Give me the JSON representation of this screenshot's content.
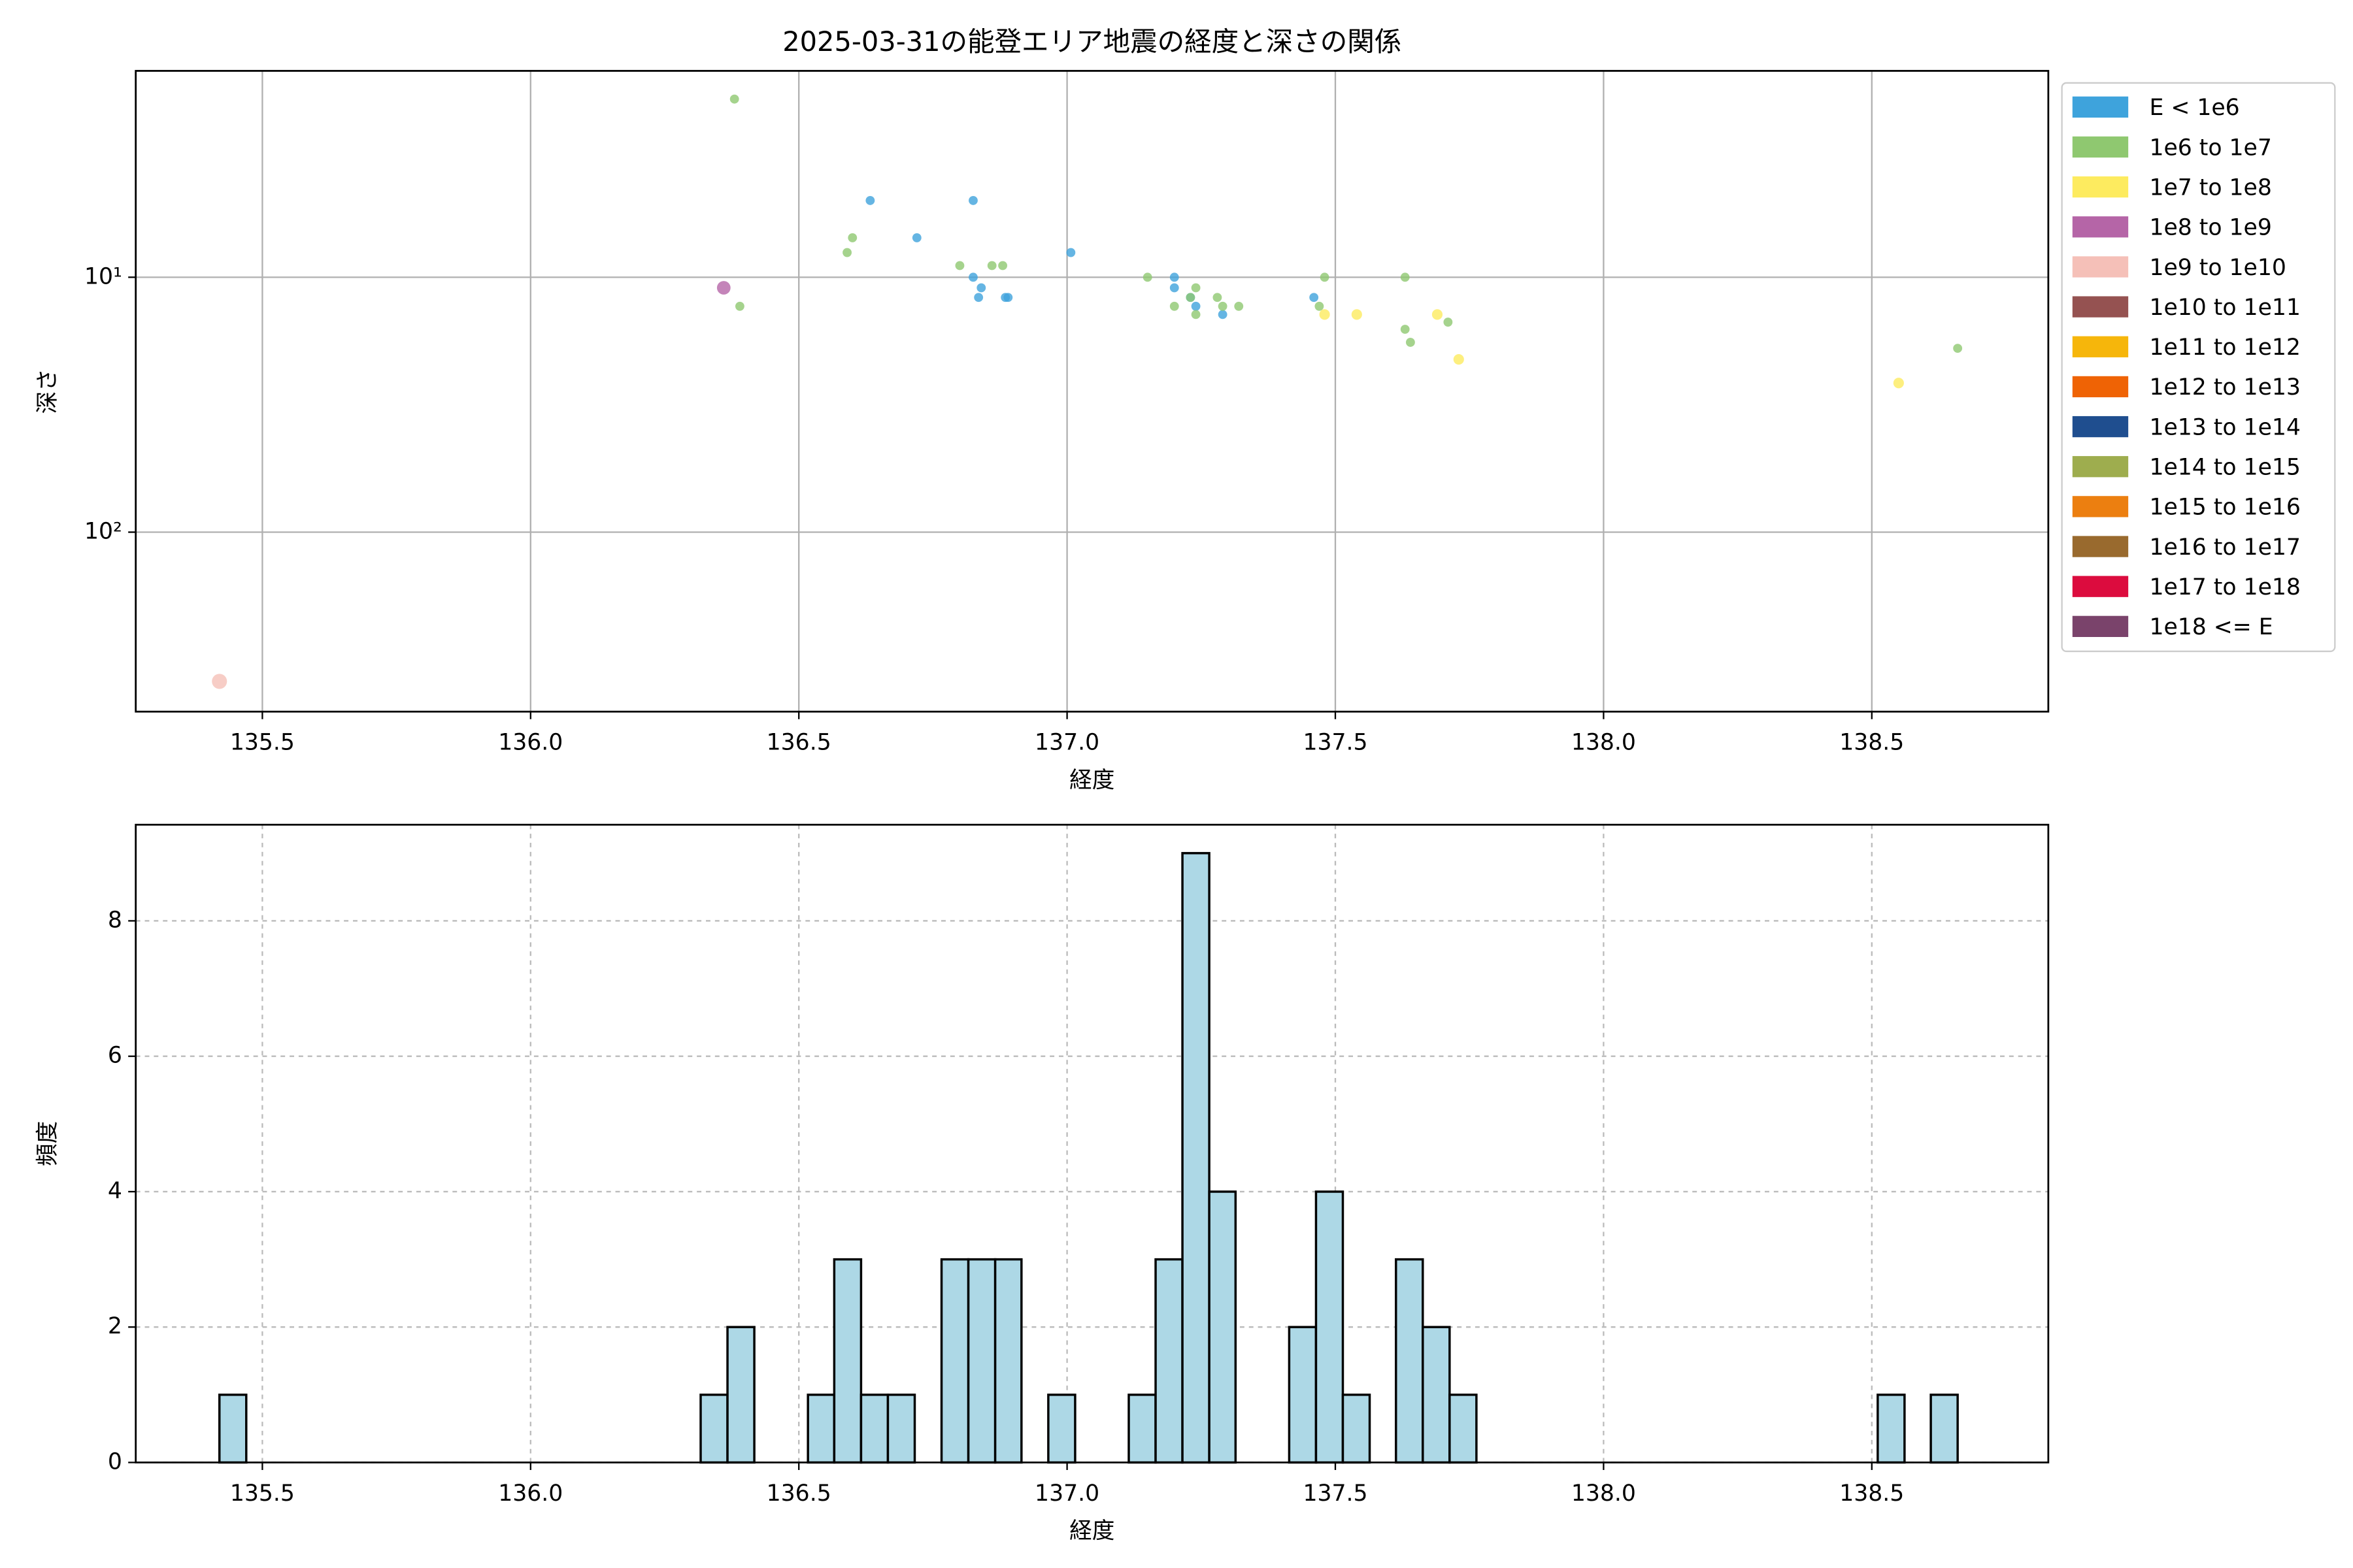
{
  "chart_data": [
    {
      "type": "scatter",
      "title": "2025-03-31の能登エリア地震の経度と深さの関係",
      "x_label": "経度",
      "y_label": "深さ",
      "xlim": [
        135.264,
        138.829
      ],
      "ylim": [
        506,
        1.55
      ],
      "yscale": "log",
      "grid_style": "solid",
      "legend": "outside right",
      "xticks": [
        135.5,
        {
          "value": 136,
          "label": "136.0"
        },
        136.5,
        {
          "value": 137,
          "label": "137.0"
        },
        137.5,
        {
          "value": 138,
          "label": "138.0"
        },
        138.5
      ],
      "yticks": [
        {
          "value": 10,
          "label": "10¹"
        },
        {
          "value": 100,
          "label": "10²"
        }
      ],
      "series": [
        {
          "name": "E < 1e6",
          "color": "#3ea3dc",
          "x": [
            136.633,
            136.825,
            136.72,
            137.007,
            136.825,
            136.84,
            136.835,
            136.885,
            136.89,
            137.2,
            137.2,
            137.23,
            137.24,
            137.29,
            137.46
          ],
          "values": [
            5,
            5,
            7,
            8,
            10,
            11,
            12,
            12,
            12,
            10,
            11,
            12,
            13,
            14,
            12
          ]
        },
        {
          "name": "1e6 to 1e7",
          "color": "#8fc870",
          "x": [
            136.38,
            136.6,
            136.59,
            136.8,
            136.86,
            136.88,
            136.39,
            137.15,
            137.2,
            137.24,
            137.23,
            137.24,
            137.28,
            137.29,
            137.32,
            137.48,
            137.47,
            137.63,
            137.63,
            137.64,
            137.71,
            138.66
          ],
          "values": [
            2,
            7,
            8,
            9,
            9,
            9,
            13,
            10,
            13,
            11,
            12,
            14,
            12,
            13,
            13,
            10,
            13,
            10,
            16,
            18,
            15,
            19
          ]
        },
        {
          "name": "1e7 to 1e8",
          "color": "#fdeb5f",
          "x": [
            137.48,
            137.54,
            137.69,
            137.73,
            138.55
          ],
          "values": [
            14,
            14,
            14,
            21,
            26
          ]
        },
        {
          "name": "1e8 to 1e9",
          "color": "#b565a7",
          "x": [
            136.36
          ],
          "values": [
            11
          ]
        },
        {
          "name": "1e9 to 1e10",
          "color": "#f5c0b8",
          "x": [
            135.42
          ],
          "values": [
            385
          ]
        },
        {
          "name": "1e10 to 1e11",
          "color": "#955251",
          "x": [],
          "values": []
        },
        {
          "name": "1e11 to 1e12",
          "color": "#f6b60b",
          "x": [],
          "values": []
        },
        {
          "name": "1e12 to 1e13",
          "color": "#ef6305",
          "x": [],
          "values": []
        },
        {
          "name": "1e13 to 1e14",
          "color": "#1f4e8f",
          "x": [],
          "values": []
        },
        {
          "name": "1e14 to 1e15",
          "color": "#9ead4e",
          "x": [],
          "values": []
        },
        {
          "name": "1e15 to 1e16",
          "color": "#ec7f10",
          "x": [],
          "values": []
        },
        {
          "name": "1e16 to 1e17",
          "color": "#996a2e",
          "x": [],
          "values": []
        },
        {
          "name": "1e17 to 1e18",
          "color": "#dc0c3e",
          "x": [],
          "values": []
        },
        {
          "name": "1e18 <= E",
          "color": "#7a436b",
          "x": [],
          "values": []
        }
      ]
    },
    {
      "type": "histogram",
      "x_label": "経度",
      "y_label": "頻度",
      "color": "#add8e6",
      "edge_color": "#000000",
      "xlim": [
        135.264,
        138.829
      ],
      "ylim": [
        0,
        9.42
      ],
      "grid_style": "dashed",
      "xticks": [
        135.5,
        {
          "value": 136,
          "label": "136.0"
        },
        136.5,
        {
          "value": 137,
          "label": "137.0"
        },
        137.5,
        {
          "value": 138,
          "label": "138.0"
        },
        138.5
      ],
      "yticks": [
        0,
        2,
        4,
        6,
        8
      ],
      "bins": [
        135.42,
        135.47,
        135.52,
        135.57,
        135.619,
        135.669,
        135.719,
        135.769,
        135.819,
        135.869,
        135.918,
        135.968,
        136.018,
        136.068,
        136.118,
        136.168,
        136.218,
        136.267,
        136.317,
        136.367,
        136.417,
        136.467,
        136.517,
        136.566,
        136.616,
        136.666,
        136.716,
        136.766,
        136.816,
        136.866,
        136.915,
        136.965,
        137.015,
        137.065,
        137.115,
        137.165,
        137.215,
        137.265,
        137.314,
        137.364,
        137.414,
        137.464,
        137.514,
        137.564,
        137.613,
        137.663,
        137.713,
        137.763,
        137.813,
        137.863,
        137.912,
        137.962,
        138.012,
        138.062,
        138.112,
        138.162,
        138.212,
        138.262,
        138.311,
        138.361,
        138.411,
        138.461,
        138.511,
        138.561,
        138.61,
        138.66
      ],
      "values": [
        1,
        0,
        0,
        0,
        0,
        0,
        0,
        0,
        0,
        0,
        0,
        0,
        0,
        0,
        0,
        0,
        0,
        0,
        1,
        2,
        0,
        0,
        1,
        3,
        1,
        1,
        0,
        3,
        3,
        3,
        0,
        1,
        0,
        0,
        1,
        3,
        9,
        4,
        0,
        0,
        2,
        4,
        1,
        0,
        3,
        2,
        1,
        0,
        0,
        0,
        0,
        0,
        0,
        0,
        0,
        0,
        0,
        0,
        0,
        0,
        0,
        0,
        1,
        0,
        1
      ]
    }
  ]
}
